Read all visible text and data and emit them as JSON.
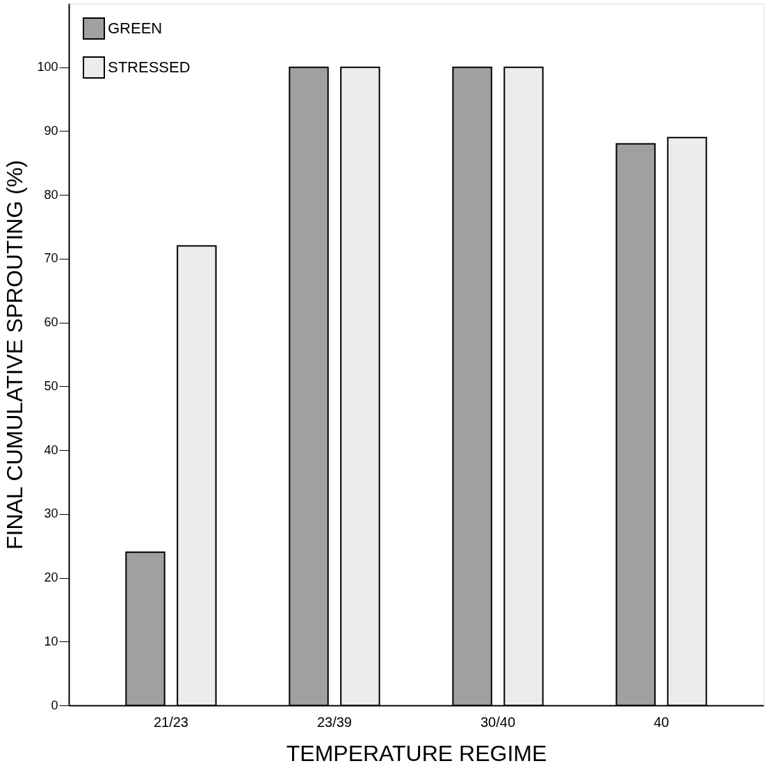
{
  "chart_data": {
    "type": "bar",
    "xlabel": "TEMPERATURE REGIME",
    "ylabel": "FINAL CUMULATIVE  SPROUTING  (%)",
    "categories": [
      "21/23",
      "23/39",
      "30/40",
      "40"
    ],
    "series": [
      {
        "name": "GREEN",
        "color": "#a0a0a0",
        "values": [
          24,
          100,
          100,
          88
        ]
      },
      {
        "name": "STRESSED",
        "color": "#ececec",
        "values": [
          72,
          100,
          100,
          89
        ]
      }
    ],
    "ylim": [
      0,
      110
    ],
    "yticks": [
      0,
      10,
      20,
      30,
      40,
      50,
      60,
      70,
      80,
      90,
      100
    ],
    "grid": false,
    "legend": "top left"
  }
}
